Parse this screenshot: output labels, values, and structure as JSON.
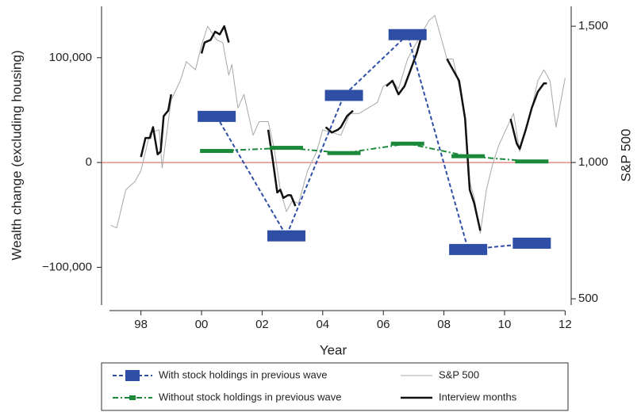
{
  "chart_data": {
    "type": "line",
    "x_label": "Year",
    "y_label": "Wealth change (excluding housing)",
    "y2_label": "S&P 500",
    "xlim": [
      1996.7,
      2012.2
    ],
    "xticks": [
      {
        "value": 1998,
        "label": "98"
      },
      {
        "value": 2000,
        "label": "00"
      },
      {
        "value": 2002,
        "label": "02"
      },
      {
        "value": 2004,
        "label": "04"
      },
      {
        "value": 2006,
        "label": "06"
      },
      {
        "value": 2008,
        "label": "08"
      },
      {
        "value": 2010,
        "label": "10"
      },
      {
        "value": 2012,
        "label": "12"
      }
    ],
    "ylim": [
      -136000,
      149000
    ],
    "yticks": [
      {
        "value": -100000,
        "label": "−100,000"
      },
      0,
      {
        "value": 100000,
        "label": "100,000"
      }
    ],
    "y2lim": [
      477,
      1573
    ],
    "y2ticks": [
      500,
      {
        "value": 1000,
        "label": "1,000"
      },
      {
        "value": 1500,
        "label": "1,500"
      }
    ],
    "reference_line": 0,
    "reference_color": "#d9534f",
    "series": [
      {
        "name": "With stock holdings in previous wave",
        "color": "#2f4fa6",
        "marker": "wide-box",
        "dash": "5,3",
        "x": [
          2000.5,
          2002.8,
          2004.7,
          2006.8,
          2008.8,
          2010.9
        ],
        "values": [
          44000,
          -70000,
          64000,
          122000,
          -83000,
          -77000
        ]
      },
      {
        "name": "Without stock holdings in previous wave",
        "color": "#1a8a3a",
        "marker": "flat-bar",
        "dash": "7,3,2,3",
        "x": [
          2000.5,
          2002.8,
          2004.7,
          2006.8,
          2008.8,
          2010.9
        ],
        "values": [
          11000,
          14000,
          9000,
          18000,
          6000,
          1000
        ]
      },
      {
        "name": "S&P 500",
        "color": "#a8a8a8",
        "axis": "y2",
        "width": 1,
        "x": [
          1997.0,
          1997.2,
          1997.5,
          1997.8,
          1998.0,
          1998.3,
          1998.6,
          1998.7,
          1999.0,
          1999.3,
          1999.5,
          1999.8,
          2000.0,
          2000.2,
          2000.5,
          2000.7,
          2000.9,
          2001.0,
          2001.2,
          2001.4,
          2001.7,
          2001.9,
          2002.2,
          2002.4,
          2002.6,
          2002.8,
          2003.0,
          2003.2,
          2003.5,
          2003.8,
          2004.0,
          2004.3,
          2004.6,
          2004.9,
          2005.2,
          2005.5,
          2005.8,
          2006.0,
          2006.3,
          2006.5,
          2006.8,
          2007.0,
          2007.3,
          2007.5,
          2007.7,
          2007.9,
          2008.1,
          2008.3,
          2008.5,
          2008.7,
          2008.8,
          2009.0,
          2009.2,
          2009.4,
          2009.6,
          2009.8,
          2010.0,
          2010.3,
          2010.5,
          2010.7,
          2010.9,
          2011.1,
          2011.3,
          2011.5,
          2011.7,
          2011.9,
          2012.0
        ],
        "values": [
          770,
          760,
          900,
          930,
          970,
          1110,
          1120,
          980,
          1230,
          1300,
          1370,
          1340,
          1430,
          1500,
          1450,
          1440,
          1320,
          1360,
          1200,
          1250,
          1100,
          1150,
          1150,
          1050,
          900,
          820,
          860,
          850,
          970,
          1040,
          1120,
          1110,
          1100,
          1180,
          1180,
          1200,
          1220,
          1280,
          1300,
          1270,
          1380,
          1420,
          1480,
          1520,
          1540,
          1460,
          1380,
          1380,
          1280,
          1160,
          950,
          870,
          740,
          900,
          990,
          1060,
          1110,
          1180,
          1040,
          1120,
          1200,
          1300,
          1340,
          1300,
          1130,
          1250,
          1310
        ]
      },
      {
        "name": "Interview months",
        "color": "#111111",
        "axis": "y2",
        "width": 2.5,
        "x": [
          1998.0,
          1998.15,
          1998.3,
          1998.4,
          1998.55,
          1998.65,
          1998.75,
          1998.9,
          1999.0,
          null,
          2000.0,
          2000.1,
          2000.3,
          2000.45,
          2000.6,
          2000.75,
          2000.9,
          null,
          2002.2,
          2002.35,
          2002.5,
          2002.6,
          2002.7,
          2002.85,
          2002.95,
          2003.1,
          null,
          2004.1,
          2004.3,
          2004.5,
          2004.6,
          2004.8,
          2005.0,
          null,
          2006.1,
          2006.3,
          2006.5,
          2006.7,
          2006.9,
          2007.1,
          2007.25,
          null,
          2008.1,
          2008.3,
          2008.5,
          2008.7,
          2008.85,
          2009.0,
          2009.2,
          null,
          2010.2,
          2010.4,
          2010.5,
          2010.7,
          2010.9,
          2011.1,
          2011.3,
          2011.4
        ],
        "values": [
          1020,
          1090,
          1090,
          1130,
          1030,
          1040,
          1170,
          1190,
          1250,
          null,
          1400,
          1440,
          1450,
          1480,
          1470,
          1500,
          1440,
          null,
          1120,
          1010,
          890,
          900,
          870,
          880,
          880,
          840,
          null,
          1130,
          1110,
          1120,
          1130,
          1170,
          1190,
          null,
          1280,
          1300,
          1250,
          1280,
          1340,
          1400,
          1460,
          null,
          1380,
          1340,
          1300,
          1160,
          900,
          850,
          750,
          null,
          1160,
          1070,
          1050,
          1120,
          1200,
          1260,
          1290,
          1290
        ]
      }
    ]
  }
}
